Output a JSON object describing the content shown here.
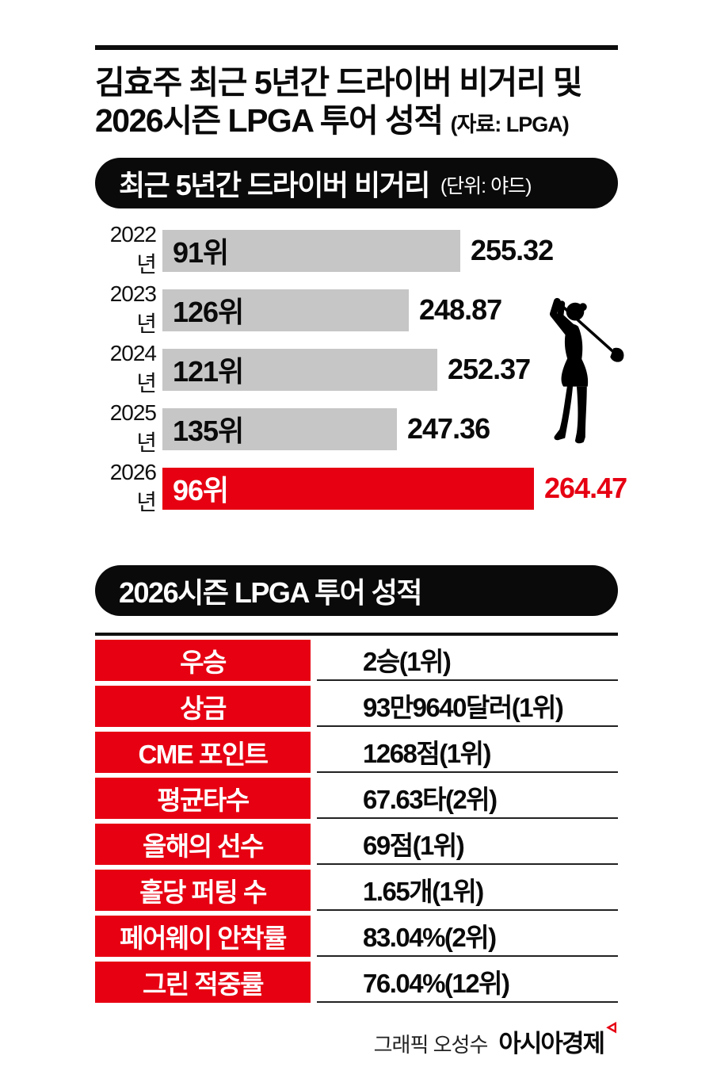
{
  "header": {
    "title_line1": "김효주 최근 5년간 드라이버 비거리 및",
    "title_line2": "2026시즌 LPGA 투어 성적",
    "source": "(자료: LPGA)"
  },
  "driver_section": {
    "badge_title": "최근 5년간 드라이버 비거리",
    "badge_unit": "(단위: 야드)"
  },
  "chart_data": {
    "type": "bar",
    "orientation": "horizontal",
    "title": "최근 5년간 드라이버 비거리",
    "unit": "야드",
    "categories": [
      "2022년",
      "2023년",
      "2024년",
      "2025년",
      "2026년"
    ],
    "values": [
      255.32,
      248.87,
      252.37,
      247.36,
      264.47
    ],
    "ranks": [
      "91위",
      "126위",
      "121위",
      "135위",
      "96위"
    ],
    "xlim": [
      218,
      275
    ],
    "highlight_index": 4,
    "grid": false,
    "legend": false,
    "colors": {
      "bar": "#c6c6c6",
      "highlight_bar": "#e60012",
      "value_text": "#0a0a0a",
      "highlight_value_text": "#e60012"
    }
  },
  "tour_section": {
    "badge_title": "2026시즌 LPGA 투어 성적",
    "table": {
      "rows": [
        {
          "label": "우승",
          "value": "2승(1위)"
        },
        {
          "label": "상금",
          "value": "93만9640달러(1위)"
        },
        {
          "label": "CME 포인트",
          "value": "1268점(1위)"
        },
        {
          "label": "평균타수",
          "value": "67.63타(2위)"
        },
        {
          "label": "올해의 선수",
          "value": "69점(1위)"
        },
        {
          "label": "홀당 퍼팅 수",
          "value": "1.65개(1위)"
        },
        {
          "label": "페어웨이 안착률",
          "value": "83.04%(2위)"
        },
        {
          "label": "그린 적중률",
          "value": "76.04%(12위)"
        }
      ]
    }
  },
  "footer": {
    "credit": "그래픽 오성수",
    "brand": "아시아경제"
  },
  "colors": {
    "accent_red": "#e60012",
    "bar_gray": "#c6c6c6",
    "ink_black": "#0a0a0a"
  }
}
